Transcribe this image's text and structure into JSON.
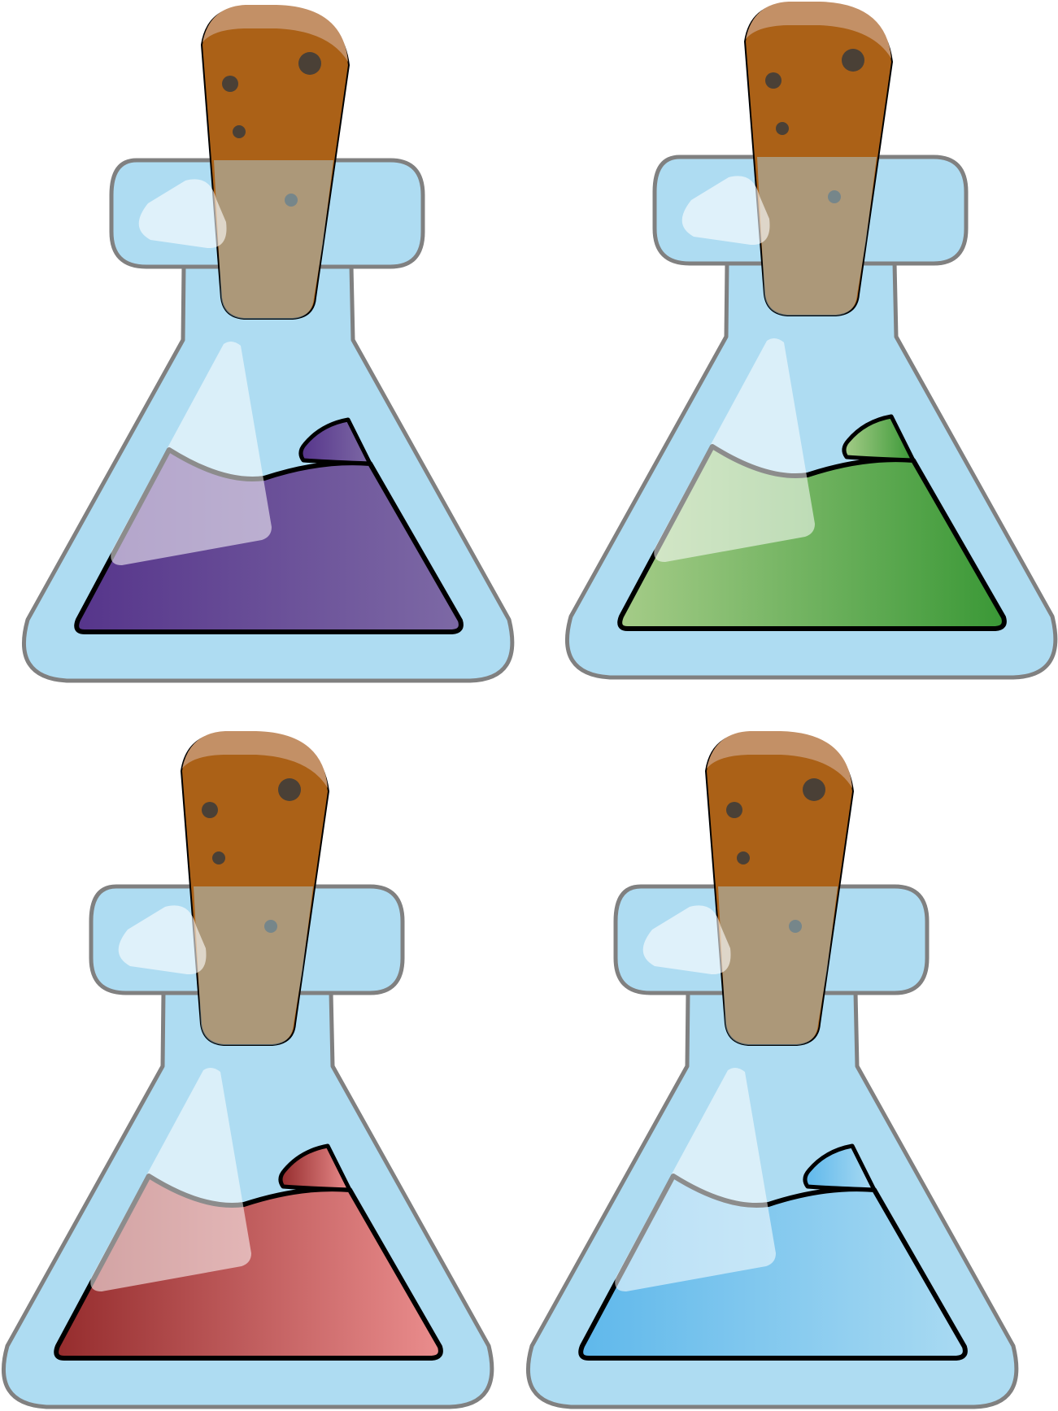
{
  "colors": {
    "background": "#ffffff",
    "glass_fill": "#aedcf2",
    "glass_outline": "#808080",
    "cork": "#ab6117",
    "cork_top": "#c39066",
    "cork_spots": "#4a4036",
    "liquid_outline": "#000000",
    "highlight": "#ffffff"
  },
  "flasks": [
    {
      "name": "purple-potion-flask",
      "liquid": "purple",
      "gradient": [
        "#56358b",
        "#7d69a5"
      ]
    },
    {
      "name": "green-potion-flask",
      "liquid": "green",
      "gradient": [
        "#a5cc88",
        "#3a9836"
      ]
    },
    {
      "name": "red-potion-flask",
      "liquid": "red",
      "gradient": [
        "#952c2d",
        "#ea8d8d"
      ]
    },
    {
      "name": "blue-potion-flask",
      "liquid": "blue",
      "gradient": [
        "#5fb8eb",
        "#a9daf2"
      ]
    }
  ]
}
